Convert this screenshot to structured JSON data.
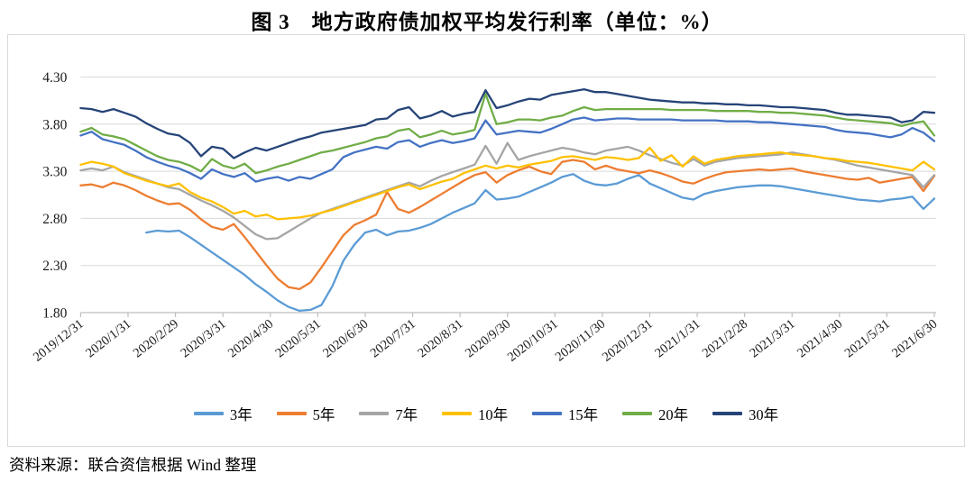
{
  "title": "图 3　地方政府债加权平均发行利率（单位：%）",
  "source": "资料来源：联合资信根据 Wind 整理",
  "chart_data": {
    "type": "line",
    "title": "图 3　地方政府债加权平均发行利率（单位：%）",
    "ylabel": "",
    "xlabel": "",
    "ylim": [
      1.8,
      4.3
    ],
    "y_tick_labels": [
      "4.30",
      "3.80",
      "3.30",
      "2.80",
      "2.30",
      "1.80"
    ],
    "grid": "horizontal",
    "legend_position": "bottom",
    "x_tick_labels": [
      "2019/12/31",
      "2020/1/31",
      "2020/2/29",
      "2020/3/31",
      "2020/4/30",
      "2020/5/31",
      "2020/6/30",
      "2020/7/31",
      "2020/8/31",
      "2020/9/30",
      "2020/10/31",
      "2020/11/30",
      "2020/12/31",
      "2021/1/31",
      "2021/2/28",
      "2021/3/31",
      "2021/4/30",
      "2021/5/31",
      "2021/6/30"
    ],
    "x_sampling": "weekly points evenly spaced from 2019/12/31 to 2021/6/30",
    "colors": {
      "grid": "#d9d9d9",
      "axis": "#bfbfbf",
      "border": "#d9d9d9",
      "text": "#1a1a1a"
    },
    "series": [
      {
        "name": "3年",
        "color": "#5B9BD5",
        "values": [
          null,
          null,
          null,
          null,
          null,
          null,
          2.65,
          2.67,
          2.66,
          2.67,
          2.6,
          2.52,
          2.44,
          2.36,
          2.28,
          2.2,
          2.1,
          2.02,
          1.93,
          1.86,
          1.82,
          1.83,
          1.88,
          2.08,
          2.35,
          2.52,
          2.65,
          2.68,
          2.62,
          2.66,
          2.67,
          2.7,
          2.74,
          2.8,
          2.86,
          2.91,
          2.96,
          3.1,
          3.0,
          3.01,
          3.03,
          3.08,
          3.13,
          3.18,
          3.24,
          3.27,
          3.2,
          3.16,
          3.15,
          3.17,
          3.22,
          3.26,
          3.17,
          3.12,
          3.07,
          3.02,
          3.0,
          3.06,
          3.09,
          3.11,
          3.13,
          3.14,
          3.15,
          3.15,
          3.14,
          3.12,
          3.1,
          3.08,
          3.06,
          3.04,
          3.02,
          3.0,
          2.99,
          2.98,
          3.0,
          3.01,
          3.03,
          2.9,
          3.01
        ]
      },
      {
        "name": "5年",
        "color": "#ED7D31",
        "values": [
          3.15,
          3.16,
          3.13,
          3.18,
          3.15,
          3.1,
          3.04,
          2.99,
          2.95,
          2.96,
          2.89,
          2.79,
          2.71,
          2.68,
          2.74,
          2.6,
          2.45,
          2.3,
          2.16,
          2.07,
          2.05,
          2.12,
          2.28,
          2.45,
          2.62,
          2.73,
          2.78,
          2.84,
          3.08,
          2.9,
          2.86,
          2.92,
          2.99,
          3.06,
          3.13,
          3.2,
          3.26,
          3.29,
          3.18,
          3.26,
          3.31,
          3.35,
          3.3,
          3.27,
          3.4,
          3.42,
          3.4,
          3.32,
          3.36,
          3.32,
          3.3,
          3.28,
          3.31,
          3.28,
          3.24,
          3.19,
          3.17,
          3.22,
          3.26,
          3.29,
          3.3,
          3.31,
          3.32,
          3.31,
          3.32,
          3.33,
          3.3,
          3.28,
          3.26,
          3.24,
          3.22,
          3.21,
          3.23,
          3.18,
          3.2,
          3.22,
          3.24,
          3.09,
          3.25
        ]
      },
      {
        "name": "7年",
        "color": "#A5A5A5",
        "values": [
          3.31,
          3.33,
          3.31,
          3.35,
          3.29,
          3.25,
          3.21,
          3.17,
          3.13,
          3.11,
          3.05,
          2.99,
          2.94,
          2.88,
          2.81,
          2.72,
          2.63,
          2.58,
          2.59,
          2.66,
          2.73,
          2.8,
          2.86,
          2.9,
          2.94,
          2.98,
          3.02,
          3.06,
          3.1,
          3.14,
          3.18,
          3.14,
          3.2,
          3.25,
          3.29,
          3.33,
          3.37,
          3.57,
          3.38,
          3.6,
          3.42,
          3.46,
          3.49,
          3.52,
          3.55,
          3.53,
          3.5,
          3.48,
          3.52,
          3.54,
          3.56,
          3.52,
          3.47,
          3.43,
          3.39,
          3.36,
          3.43,
          3.36,
          3.4,
          3.42,
          3.44,
          3.45,
          3.46,
          3.47,
          3.48,
          3.5,
          3.48,
          3.46,
          3.44,
          3.42,
          3.39,
          3.36,
          3.34,
          3.32,
          3.3,
          3.28,
          3.26,
          3.13,
          3.26
        ]
      },
      {
        "name": "10年",
        "color": "#FFC000",
        "values": [
          3.37,
          3.4,
          3.38,
          3.35,
          3.28,
          3.24,
          3.2,
          3.17,
          3.14,
          3.17,
          3.08,
          3.02,
          2.98,
          2.92,
          2.85,
          2.88,
          2.82,
          2.84,
          2.79,
          2.8,
          2.81,
          2.83,
          2.86,
          2.89,
          2.93,
          2.97,
          3.01,
          3.05,
          3.09,
          3.13,
          3.16,
          3.11,
          3.15,
          3.19,
          3.22,
          3.28,
          3.32,
          3.36,
          3.33,
          3.36,
          3.34,
          3.37,
          3.39,
          3.41,
          3.45,
          3.46,
          3.44,
          3.42,
          3.45,
          3.44,
          3.42,
          3.44,
          3.55,
          3.41,
          3.47,
          3.35,
          3.46,
          3.38,
          3.42,
          3.44,
          3.46,
          3.47,
          3.48,
          3.49,
          3.5,
          3.48,
          3.47,
          3.46,
          3.44,
          3.43,
          3.41,
          3.4,
          3.39,
          3.37,
          3.35,
          3.33,
          3.31,
          3.4,
          3.32
        ]
      },
      {
        "name": "15年",
        "color": "#4472C4",
        "values": [
          3.68,
          3.72,
          3.64,
          3.61,
          3.58,
          3.52,
          3.45,
          3.4,
          3.36,
          3.33,
          3.28,
          3.22,
          3.32,
          3.27,
          3.24,
          3.28,
          3.19,
          3.22,
          3.24,
          3.2,
          3.24,
          3.22,
          3.27,
          3.32,
          3.45,
          3.5,
          3.53,
          3.56,
          3.54,
          3.61,
          3.63,
          3.56,
          3.6,
          3.63,
          3.6,
          3.62,
          3.65,
          3.84,
          3.69,
          3.71,
          3.73,
          3.72,
          3.71,
          3.75,
          3.8,
          3.85,
          3.87,
          3.84,
          3.85,
          3.86,
          3.86,
          3.85,
          3.85,
          3.85,
          3.85,
          3.84,
          3.84,
          3.84,
          3.84,
          3.83,
          3.83,
          3.83,
          3.82,
          3.82,
          3.81,
          3.8,
          3.79,
          3.78,
          3.77,
          3.74,
          3.72,
          3.71,
          3.7,
          3.68,
          3.66,
          3.69,
          3.76,
          3.71,
          3.62
        ]
      },
      {
        "name": "20年",
        "color": "#70AD47",
        "values": [
          3.72,
          3.76,
          3.69,
          3.67,
          3.64,
          3.58,
          3.52,
          3.46,
          3.42,
          3.4,
          3.36,
          3.3,
          3.43,
          3.36,
          3.33,
          3.38,
          3.28,
          3.31,
          3.35,
          3.38,
          3.42,
          3.46,
          3.5,
          3.52,
          3.55,
          3.58,
          3.61,
          3.65,
          3.67,
          3.73,
          3.75,
          3.66,
          3.69,
          3.73,
          3.69,
          3.71,
          3.74,
          4.12,
          3.8,
          3.82,
          3.85,
          3.85,
          3.84,
          3.87,
          3.89,
          3.94,
          3.98,
          3.95,
          3.96,
          3.96,
          3.96,
          3.96,
          3.96,
          3.96,
          3.95,
          3.95,
          3.95,
          3.95,
          3.94,
          3.94,
          3.94,
          3.94,
          3.93,
          3.93,
          3.92,
          3.92,
          3.91,
          3.9,
          3.89,
          3.87,
          3.85,
          3.84,
          3.83,
          3.82,
          3.81,
          3.78,
          3.81,
          3.83,
          3.68
        ]
      },
      {
        "name": "30年",
        "color": "#264478",
        "values": [
          3.97,
          3.96,
          3.93,
          3.96,
          3.92,
          3.88,
          3.81,
          3.75,
          3.7,
          3.68,
          3.6,
          3.46,
          3.56,
          3.54,
          3.44,
          3.5,
          3.55,
          3.52,
          3.56,
          3.6,
          3.64,
          3.67,
          3.71,
          3.73,
          3.75,
          3.77,
          3.79,
          3.85,
          3.86,
          3.95,
          3.98,
          3.86,
          3.89,
          3.94,
          3.88,
          3.91,
          3.93,
          4.16,
          3.97,
          4.0,
          4.04,
          4.07,
          4.06,
          4.11,
          4.13,
          4.15,
          4.17,
          4.14,
          4.14,
          4.12,
          4.1,
          4.08,
          4.06,
          4.05,
          4.04,
          4.03,
          4.03,
          4.02,
          4.02,
          4.01,
          4.01,
          4.0,
          4.0,
          3.99,
          3.98,
          3.98,
          3.97,
          3.96,
          3.95,
          3.92,
          3.9,
          3.9,
          3.89,
          3.88,
          3.87,
          3.82,
          3.84,
          3.93,
          3.92
        ]
      }
    ]
  }
}
